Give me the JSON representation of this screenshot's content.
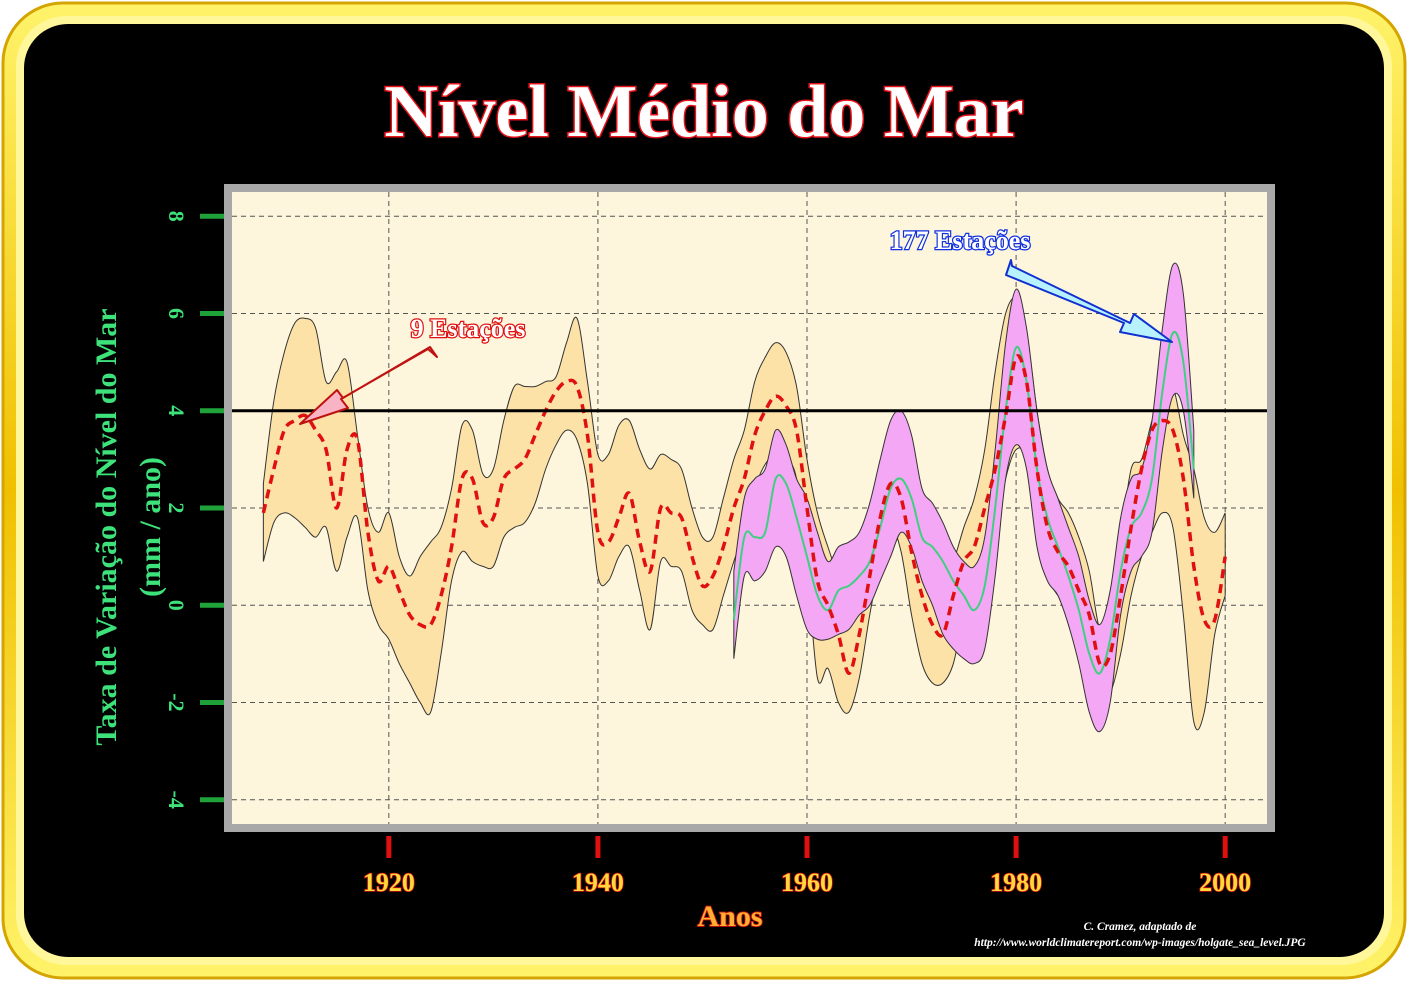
{
  "page": {
    "title": "Nível Médio do Mar",
    "credit_line1": "C. Cramez, adaptado de",
    "credit_line2": "http://www.worldclimatereport.com/wp-images/holgate_sea_level.JPG"
  },
  "colors": {
    "background": "#000000",
    "frame_gold": "#ffd21a",
    "plot_bg": "#fdf5dc",
    "band_9": "#fde2a8",
    "band_177": "#f3a7f5",
    "line_9": "#e01010",
    "line_177": "#3fcf80",
    "ref_line": "#000000"
  },
  "chart_data": {
    "type": "line",
    "title": "Nível Médio do Mar",
    "xlabel": "Anos",
    "ylabel_line1": "Taxa de Variação do Nível do Mar",
    "ylabel_line2": "(mm / ano)",
    "xlim": [
      1905,
      2004
    ],
    "ylim": [
      -4.5,
      8.5
    ],
    "xticks": [
      1920,
      1940,
      1960,
      1980,
      2000
    ],
    "xtick_labels": [
      "1920",
      "1940",
      "1960",
      "1980",
      "2000"
    ],
    "yticks": [
      -4,
      -2,
      0,
      2,
      4,
      6,
      8
    ],
    "ytick_labels": [
      "-4",
      "-2",
      "0",
      "2",
      "4",
      "6",
      "8"
    ],
    "grid": true,
    "reference_line": 4,
    "annotations": [
      {
        "text": "9 Estações",
        "target": [
          1911,
          3.8
        ]
      },
      {
        "text": "177 Estações",
        "target": [
          1994,
          5.4
        ]
      }
    ],
    "series": [
      {
        "name": "9 Estações",
        "style": "dashed",
        "x": [
          1908,
          1909,
          1910,
          1911,
          1912,
          1913,
          1914,
          1915,
          1916,
          1917,
          1918,
          1919,
          1920,
          1921,
          1922,
          1923,
          1924,
          1925,
          1926,
          1927,
          1928,
          1929,
          1930,
          1931,
          1932,
          1933,
          1934,
          1935,
          1936,
          1937,
          1938,
          1939,
          1940,
          1941,
          1942,
          1943,
          1944,
          1945,
          1946,
          1947,
          1948,
          1949,
          1950,
          1951,
          1952,
          1953,
          1954,
          1955,
          1956,
          1957,
          1958,
          1959,
          1960,
          1961,
          1962,
          1963,
          1964,
          1965,
          1966,
          1967,
          1968,
          1969,
          1970,
          1971,
          1972,
          1973,
          1974,
          1975,
          1976,
          1977,
          1978,
          1979,
          1980,
          1981,
          1982,
          1983,
          1984,
          1985,
          1986,
          1987,
          1988,
          1989,
          1990,
          1991,
          1992,
          1993,
          1994,
          1995,
          1996,
          1997,
          1998,
          1999,
          2000
        ],
        "y": [
          1.9,
          2.8,
          3.6,
          3.8,
          3.9,
          3.6,
          3.2,
          2.0,
          3.2,
          3.4,
          1.5,
          0.5,
          0.8,
          0.3,
          -0.2,
          -0.4,
          -0.4,
          0.2,
          1.2,
          2.6,
          2.6,
          1.7,
          1.8,
          2.6,
          2.8,
          3.0,
          3.5,
          4.0,
          4.4,
          4.6,
          4.5,
          3.5,
          1.5,
          1.3,
          1.8,
          2.3,
          1.3,
          0.7,
          2.0,
          1.9,
          1.8,
          1.0,
          0.4,
          0.6,
          1.2,
          2.0,
          2.6,
          3.5,
          4.0,
          4.3,
          4.1,
          3.6,
          2.0,
          0.5,
          0.0,
          -0.6,
          -1.4,
          -0.6,
          0.6,
          1.8,
          2.5,
          2.2,
          1.1,
          0.2,
          -0.4,
          -0.6,
          0.2,
          0.9,
          1.2,
          2.0,
          2.8,
          3.9,
          5.1,
          4.6,
          2.8,
          1.6,
          1.1,
          0.8,
          0.3,
          -0.2,
          -1.2,
          -1.0,
          0.2,
          1.6,
          2.8,
          3.6,
          3.8,
          3.6,
          2.6,
          0.8,
          -0.3,
          -0.3,
          1.0
        ],
        "lower": [
          0.9,
          1.7,
          1.9,
          1.8,
          1.6,
          1.4,
          1.6,
          0.7,
          1.4,
          1.8,
          0.3,
          -0.4,
          -0.7,
          -1.2,
          -1.6,
          -2.0,
          -2.2,
          -1.0,
          0.5,
          1.1,
          0.9,
          0.8,
          0.8,
          1.4,
          1.6,
          1.7,
          2.1,
          2.8,
          3.3,
          3.6,
          3.4,
          2.5,
          0.6,
          0.5,
          1.0,
          1.2,
          0.3,
          -0.5,
          0.9,
          0.8,
          0.7,
          -0.1,
          -0.4,
          -0.5,
          0.2,
          0.9,
          1.5,
          2.4,
          2.9,
          3.1,
          3.0,
          2.6,
          0.8,
          -1.5,
          -1.3,
          -2.0,
          -2.2,
          -1.5,
          -0.2,
          0.9,
          1.6,
          1.1,
          -0.2,
          -1.2,
          -1.6,
          -1.6,
          -1.2,
          -0.2,
          0.1,
          0.6,
          1.4,
          2.6,
          3.2,
          3.0,
          1.5,
          0.6,
          0.2,
          0.0,
          -0.6,
          -1.5,
          -1.8,
          -1.8,
          -1.0,
          0.2,
          1.0,
          1.5,
          1.9,
          1.6,
          -0.2,
          -2.4,
          -2.2,
          -0.6,
          0.2
        ],
        "upper": [
          2.5,
          4.2,
          5.2,
          5.8,
          5.9,
          5.7,
          4.6,
          4.8,
          5.0,
          3.5,
          2.0,
          1.5,
          1.9,
          1.0,
          0.6,
          1.0,
          1.3,
          1.6,
          2.4,
          3.7,
          3.6,
          2.7,
          2.8,
          3.8,
          4.5,
          4.5,
          4.5,
          4.6,
          4.7,
          5.4,
          5.9,
          4.6,
          3.1,
          3.1,
          3.7,
          3.8,
          3.2,
          2.8,
          3.1,
          3.0,
          2.8,
          2.0,
          1.4,
          1.4,
          2.2,
          3.0,
          3.6,
          4.6,
          5.1,
          5.4,
          5.2,
          4.5,
          3.0,
          1.9,
          1.2,
          0.6,
          0.2,
          0.4,
          1.5,
          2.6,
          3.3,
          3.0,
          2.0,
          1.2,
          0.9,
          0.5,
          0.9,
          1.6,
          2.2,
          3.2,
          4.8,
          6.0,
          6.3,
          5.6,
          4.0,
          2.8,
          2.2,
          1.9,
          1.4,
          0.7,
          -0.5,
          -0.4,
          1.3,
          2.8,
          3.0,
          3.8,
          4.4,
          4.5,
          3.5,
          2.8,
          1.8,
          1.5,
          1.9
        ]
      },
      {
        "name": "177 Estações",
        "style": "solid",
        "x": [
          1953,
          1954,
          1955,
          1956,
          1957,
          1958,
          1959,
          1960,
          1961,
          1962,
          1963,
          1964,
          1965,
          1966,
          1967,
          1968,
          1969,
          1970,
          1971,
          1972,
          1973,
          1974,
          1975,
          1976,
          1977,
          1978,
          1979,
          1980,
          1981,
          1982,
          1983,
          1984,
          1985,
          1986,
          1987,
          1988,
          1989,
          1990,
          1991,
          1992,
          1993,
          1994,
          1995,
          1996,
          1997
        ],
        "y": [
          -0.3,
          1.4,
          1.4,
          1.5,
          2.6,
          2.5,
          1.8,
          1.0,
          0.2,
          -0.1,
          0.3,
          0.4,
          0.6,
          0.9,
          1.6,
          2.4,
          2.6,
          2.2,
          1.4,
          1.2,
          0.9,
          0.5,
          0.2,
          -0.1,
          0.4,
          2.0,
          4.0,
          5.3,
          4.6,
          2.8,
          1.8,
          1.2,
          0.6,
          -0.1,
          -1.0,
          -1.4,
          -0.7,
          0.7,
          1.6,
          1.9,
          2.6,
          4.4,
          5.6,
          5.0,
          2.8
        ],
        "lower": [
          -1.1,
          0.6,
          0.5,
          0.7,
          1.2,
          1.0,
          0.2,
          -0.5,
          -0.7,
          -0.7,
          -0.6,
          -0.5,
          -0.2,
          0.0,
          0.5,
          1.0,
          1.5,
          1.2,
          0.5,
          0.0,
          -0.6,
          -0.9,
          -1.1,
          -1.2,
          -0.9,
          0.6,
          2.6,
          3.3,
          2.8,
          1.2,
          0.5,
          0.2,
          -0.4,
          -1.2,
          -2.2,
          -2.6,
          -2.0,
          -0.2,
          0.7,
          1.0,
          1.5,
          3.2,
          4.3,
          4.0,
          2.2
        ],
        "upper": [
          0.7,
          2.2,
          2.6,
          2.8,
          3.6,
          3.3,
          2.6,
          2.2,
          1.5,
          0.9,
          1.2,
          1.3,
          1.5,
          2.1,
          3.0,
          3.8,
          4.0,
          3.5,
          2.4,
          2.1,
          1.7,
          1.2,
          0.9,
          0.8,
          1.4,
          3.2,
          5.4,
          6.5,
          5.7,
          4.0,
          2.8,
          2.2,
          1.6,
          1.0,
          0.1,
          -0.4,
          0.3,
          1.8,
          2.6,
          2.8,
          3.8,
          5.7,
          7.0,
          6.4,
          3.6
        ]
      }
    ]
  }
}
